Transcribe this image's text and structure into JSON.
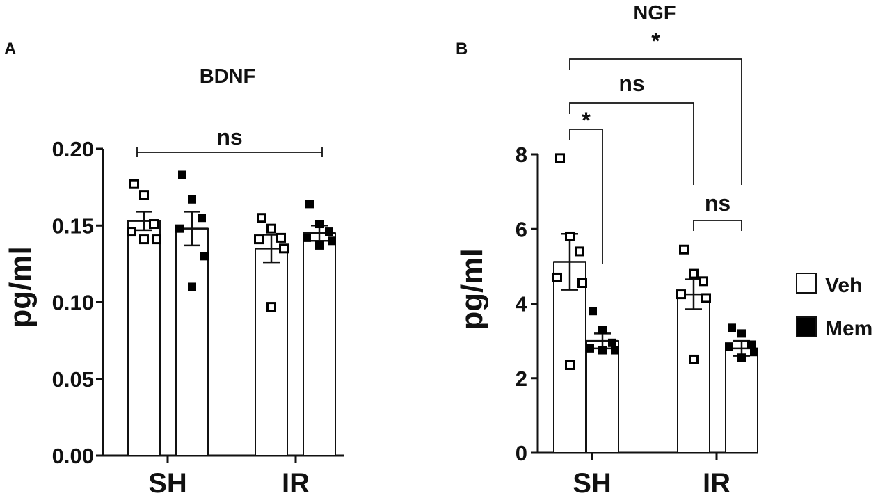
{
  "chart_data": [
    {
      "panel": "A",
      "type": "bar",
      "title": "BDNF",
      "ylabel": "pg/ml",
      "xlabel": "",
      "ylim": [
        0,
        0.2
      ],
      "yticks": [
        "0.00",
        "0.05",
        "0.10",
        "0.15",
        "0.20"
      ],
      "categories": [
        "SH",
        "IR"
      ],
      "series": [
        {
          "name": "Veh",
          "values": [
            0.153,
            0.135
          ],
          "sem": [
            0.006,
            0.009
          ],
          "points": [
            [
              0.177,
              0.17,
              0.151,
              0.146,
              0.141,
              0.141
            ],
            [
              0.155,
              0.148,
              0.142,
              0.141,
              0.135,
              0.097
            ]
          ]
        },
        {
          "name": "Mem",
          "values": [
            0.148,
            0.145
          ],
          "sem": [
            0.011,
            0.005
          ],
          "points": [
            [
              0.183,
              0.167,
              0.155,
              0.148,
              0.13,
              0.11
            ],
            [
              0.164,
              0.151,
              0.146,
              0.142,
              0.14,
              0.137
            ]
          ]
        }
      ],
      "annotations": [
        {
          "label": "ns",
          "from": [
            "SH",
            "Veh"
          ],
          "to": [
            "IR",
            "Mem"
          ]
        }
      ]
    },
    {
      "panel": "B",
      "type": "bar",
      "title": "NGF",
      "ylabel": "pg/ml",
      "xlabel": "",
      "ylim": [
        0,
        8
      ],
      "yticks": [
        "0",
        "2",
        "4",
        "6",
        "8"
      ],
      "categories": [
        "SH",
        "IR"
      ],
      "series": [
        {
          "name": "Veh",
          "values": [
            5.12,
            4.25
          ],
          "sem": [
            0.75,
            0.4
          ],
          "points": [
            [
              7.9,
              5.8,
              5.4,
              4.7,
              4.55,
              2.35
            ],
            [
              5.45,
              4.8,
              4.6,
              4.25,
              4.15,
              2.5
            ]
          ]
        },
        {
          "name": "Mem",
          "values": [
            3.0,
            2.8
          ],
          "sem": [
            0.2,
            0.2
          ],
          "points": [
            [
              3.8,
              3.3,
              2.95,
              2.8,
              2.75,
              2.75
            ],
            [
              3.35,
              3.2,
              2.9,
              2.85,
              2.7,
              2.55
            ]
          ]
        }
      ],
      "annotations": [
        {
          "label": "*",
          "from": [
            "SH",
            "Veh"
          ],
          "to": [
            "SH",
            "Mem"
          ]
        },
        {
          "label": "ns",
          "from": [
            "SH",
            "Veh"
          ],
          "to": [
            "IR",
            "Veh"
          ]
        },
        {
          "label": "*",
          "from": [
            "SH",
            "Veh"
          ],
          "to": [
            "IR",
            "Mem"
          ]
        },
        {
          "label": "ns",
          "from": [
            "IR",
            "Veh"
          ],
          "to": [
            "IR",
            "Mem"
          ]
        }
      ]
    }
  ],
  "legend": {
    "placement": "right",
    "items": [
      {
        "label": "Veh",
        "fill": "#ffffff"
      },
      {
        "label": "Mem",
        "fill": "#000000"
      }
    ]
  },
  "colors": {
    "veh_fill": "#ffffff",
    "mem_fill": "#000000",
    "ink": "#111111"
  }
}
